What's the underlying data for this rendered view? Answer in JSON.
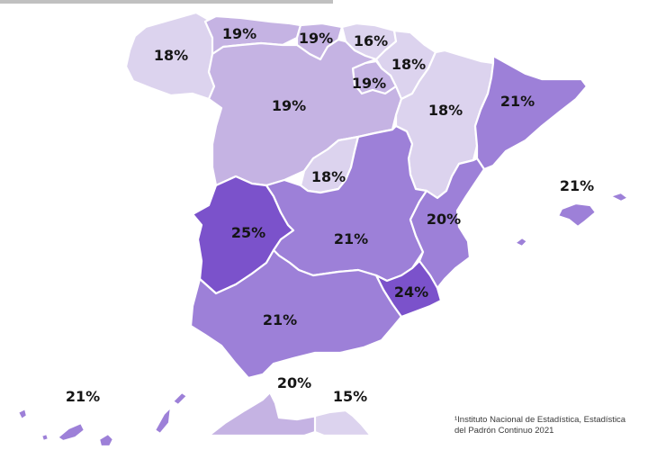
{
  "colors": {
    "lightest": "#dcd3ee",
    "light": "#c5b3e3",
    "medium": "#9d80d8",
    "dark": "#7b52cb",
    "top_strip": "#4a4a4a",
    "label_text": "#151515",
    "border": "#ffffff"
  },
  "regions": [
    {
      "id": "galicia",
      "value": "18%",
      "color_key": "lightest"
    },
    {
      "id": "asturias",
      "value": "19%",
      "color_key": "light"
    },
    {
      "id": "cantabria",
      "value": "19%",
      "color_key": "light"
    },
    {
      "id": "pais-vasco",
      "value": "16%",
      "color_key": "lightest"
    },
    {
      "id": "navarra",
      "value": "18%",
      "color_key": "lightest"
    },
    {
      "id": "la-rioja",
      "value": "19%",
      "color_key": "light"
    },
    {
      "id": "castilla-y-leon",
      "value": "19%",
      "color_key": "light"
    },
    {
      "id": "aragon",
      "value": "18%",
      "color_key": "lightest"
    },
    {
      "id": "cataluna",
      "value": "21%",
      "color_key": "medium"
    },
    {
      "id": "madrid",
      "value": "18%",
      "color_key": "lightest"
    },
    {
      "id": "extremadura",
      "value": "25%",
      "color_key": "dark"
    },
    {
      "id": "castilla-la-mancha",
      "value": "21%",
      "color_key": "medium"
    },
    {
      "id": "valencia",
      "value": "20%",
      "color_key": "medium"
    },
    {
      "id": "murcia",
      "value": "24%",
      "color_key": "dark"
    },
    {
      "id": "andalucia",
      "value": "21%",
      "color_key": "medium"
    },
    {
      "id": "baleares",
      "value": "21%",
      "color_key": "medium"
    },
    {
      "id": "canarias",
      "value": "21%",
      "color_key": "medium"
    },
    {
      "id": "ceuta",
      "value": "20%",
      "color_key": "light"
    },
    {
      "id": "melilla",
      "value": "15%",
      "color_key": "lightest"
    }
  ],
  "source_note": {
    "line1": "¹Instituto Nacional de Estadística, Estadística",
    "line2": "del Padrón Continuo 2021"
  }
}
